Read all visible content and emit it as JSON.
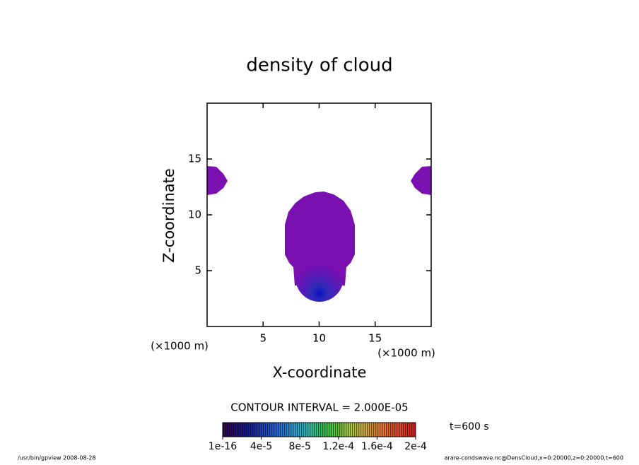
{
  "chart_data": {
    "type": "contour",
    "title": "density of cloud",
    "xlabel": "X-coordinate",
    "ylabel": "Z-coordinate",
    "xunit": "(×1000 m)",
    "yunit": "(×1000 m)",
    "xlim": [
      0,
      20
    ],
    "ylim": [
      0,
      20
    ],
    "xticks": [
      5,
      10,
      15
    ],
    "yticks": [
      5,
      10,
      15
    ],
    "contour_interval": "CONTOUR INTERVAL = 2.000E-05",
    "colorbar_ticks": [
      1e-16,
      {
        "value": 4e-05,
        "label": "4e-5"
      },
      {
        "value": 8e-05,
        "label": "8e-5"
      },
      {
        "value": 0.00012,
        "label": "1.2e-4"
      },
      {
        "value": 0.00016,
        "label": "1.6e-4"
      },
      {
        "value": 0.0002,
        "label": "2e-4"
      }
    ],
    "time": "t=600 s",
    "footer_left": "/usr/bin/gpview   2008-08-28",
    "footer_right": "arare-condswave.nc@DensCloud,x=0:20000,z=0:20000,t=600"
  }
}
